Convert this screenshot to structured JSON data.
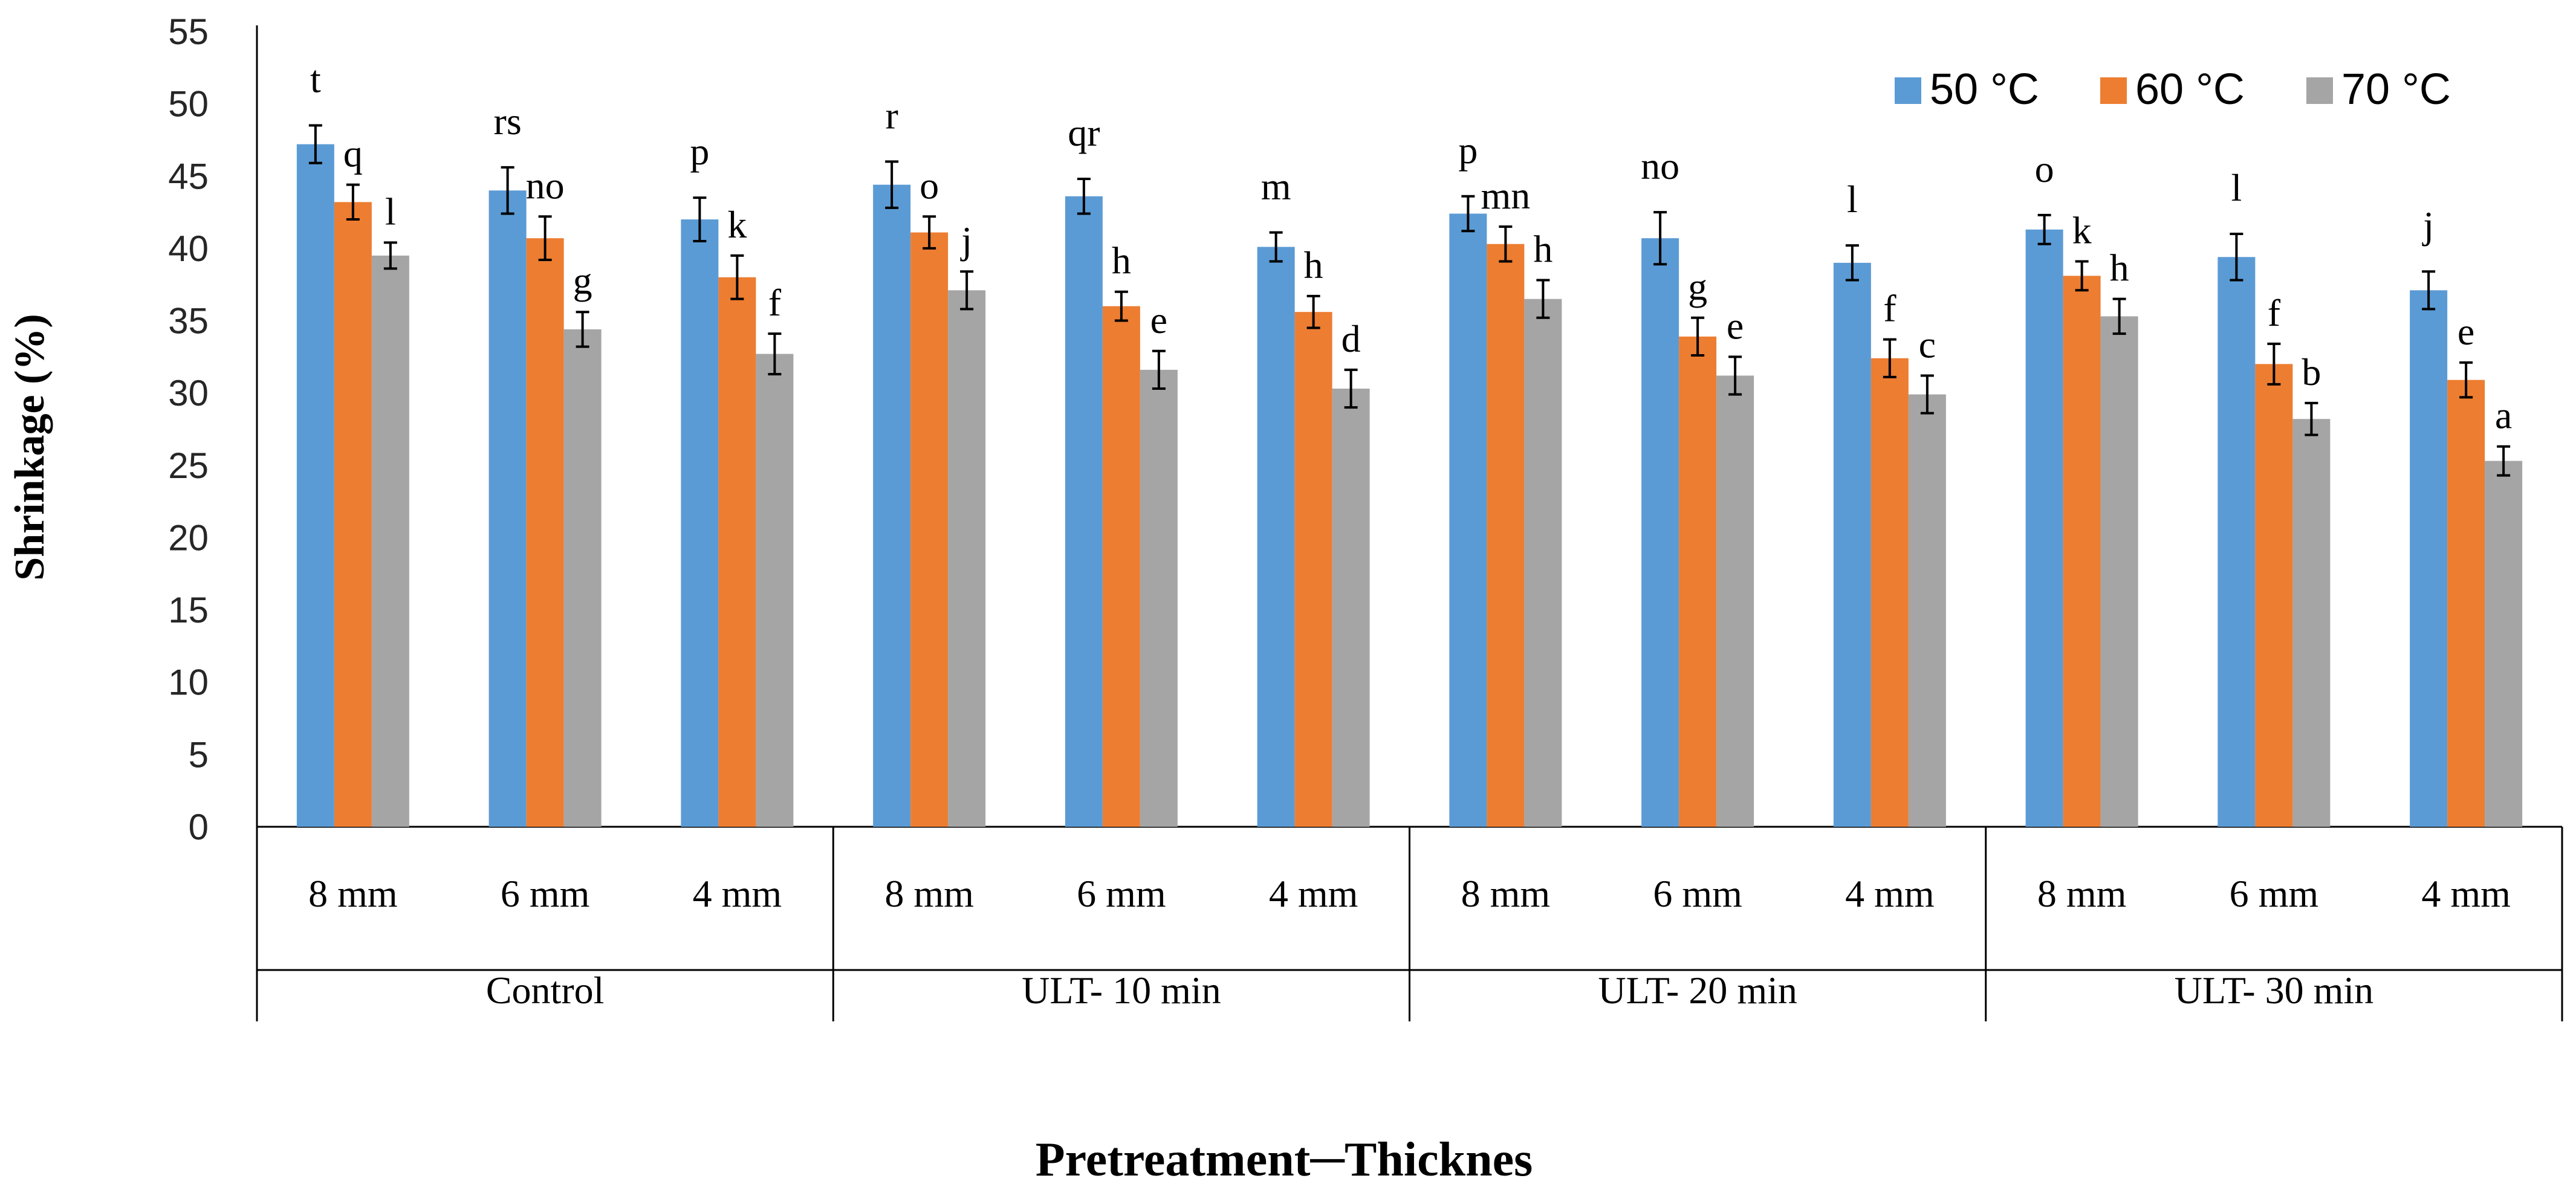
{
  "chart_data": {
    "type": "bar",
    "title": "",
    "ylabel": "Shrinkage (%)",
    "xlabel": "Pretreatment─Thicknes",
    "ylim": [
      0,
      55
    ],
    "yticks": [
      0,
      5,
      10,
      15,
      20,
      25,
      30,
      35,
      40,
      45,
      50,
      55
    ],
    "grid": false,
    "legend_position": "top-right",
    "groups": [
      {
        "label": "Control",
        "categories": [
          "8 mm",
          "6 mm",
          "4 mm"
        ]
      },
      {
        "label": "ULT- 10 min",
        "categories": [
          "8 mm",
          "6 mm",
          "4 mm"
        ]
      },
      {
        "label": "ULT- 20 min",
        "categories": [
          "8 mm",
          "6 mm",
          "4 mm"
        ]
      },
      {
        "label": "ULT- 30 min",
        "categories": [
          "8 mm",
          "6 mm",
          "4 mm"
        ]
      }
    ],
    "series": [
      {
        "name": "50 °C",
        "color": "#5B9BD5",
        "values": [
          47.2,
          44.0,
          42.0,
          44.4,
          43.6,
          40.1,
          42.4,
          40.7,
          39.0,
          41.3,
          39.4,
          37.1
        ],
        "errors": [
          1.3,
          1.6,
          1.5,
          1.6,
          1.2,
          1.0,
          1.2,
          1.8,
          1.2,
          1.0,
          1.6,
          1.3
        ],
        "labels": [
          "t",
          "rs",
          "p",
          "r",
          "qr",
          "m",
          "p",
          "no",
          "l",
          "o",
          "l",
          "j"
        ]
      },
      {
        "name": "60 °C",
        "color": "#ED7D31",
        "values": [
          43.2,
          40.7,
          38.0,
          41.1,
          36.0,
          35.6,
          40.3,
          33.9,
          32.4,
          38.1,
          32.0,
          30.9
        ],
        "errors": [
          1.2,
          1.5,
          1.5,
          1.1,
          1.0,
          1.1,
          1.2,
          1.3,
          1.3,
          1.0,
          1.4,
          1.2
        ],
        "labels": [
          "q",
          "no",
          "k",
          "o",
          "h",
          "h",
          "mn",
          "g",
          "f",
          "k",
          "f",
          "e"
        ]
      },
      {
        "name": "70 °C",
        "color": "#A5A5A5",
        "values": [
          39.5,
          34.4,
          32.7,
          37.1,
          31.6,
          30.3,
          36.5,
          31.2,
          29.9,
          35.3,
          28.2,
          25.3
        ],
        "errors": [
          0.9,
          1.2,
          1.4,
          1.3,
          1.3,
          1.3,
          1.3,
          1.3,
          1.3,
          1.2,
          1.1,
          1.0
        ],
        "labels": [
          "l",
          "g",
          "f",
          "j",
          "e",
          "d",
          "h",
          "e",
          "c",
          "h",
          "b",
          "a"
        ]
      }
    ]
  }
}
